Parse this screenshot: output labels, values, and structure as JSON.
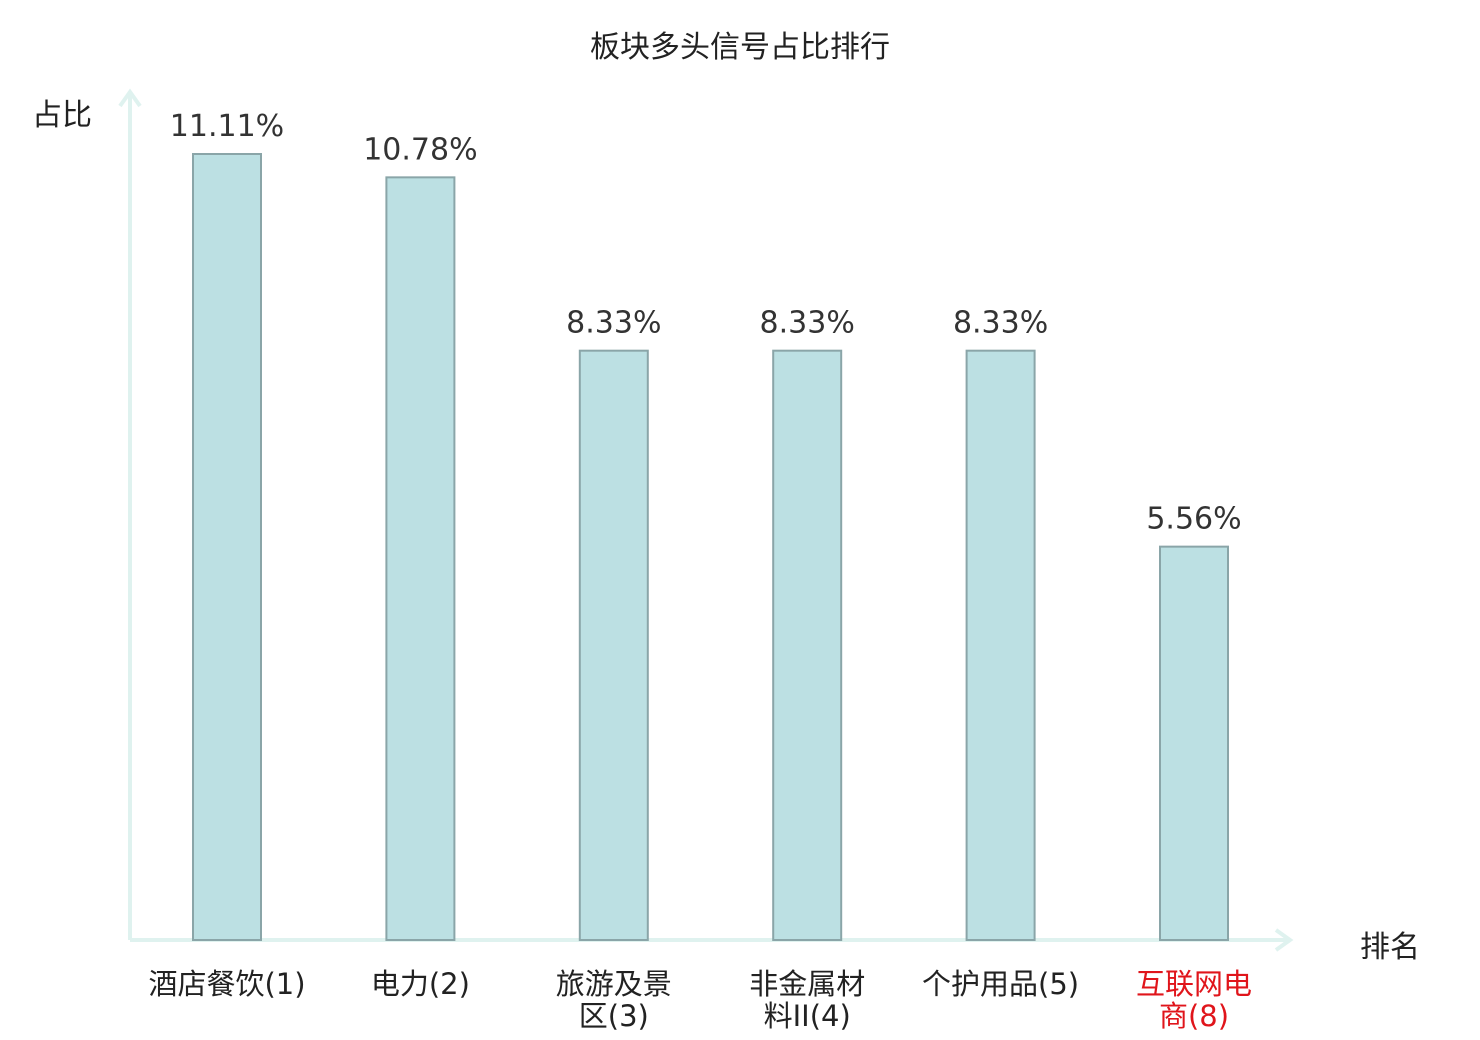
{
  "chart_data": {
    "type": "bar",
    "title": "板块多头信号占比排行",
    "ylabel": "占比",
    "xlabel": "排名",
    "categories": [
      "酒店餐饮(1)",
      "电力(2)",
      "旅游及景区(3)",
      "非金属材料II(4)",
      "个护用品(5)",
      "互联网电商(8)"
    ],
    "category_lines": [
      [
        "酒店餐饮(1)"
      ],
      [
        "电力(2)"
      ],
      [
        "旅游及景",
        "区(3)"
      ],
      [
        "非金属材",
        "料II(4)"
      ],
      [
        "个护用品(5)"
      ],
      [
        "互联网电",
        "商(8)"
      ]
    ],
    "values": [
      11.11,
      10.78,
      8.33,
      8.33,
      8.33,
      5.56
    ],
    "value_labels": [
      "11.11%",
      "10.78%",
      "8.33%",
      "8.33%",
      "8.33%",
      "5.56%"
    ],
    "highlight_index": 5,
    "ylim": [
      0,
      11.11
    ],
    "grid": false,
    "colors": {
      "bar_fill": "#bce0e3",
      "bar_stroke": "#8aa5a8",
      "axis": "#dff2ef",
      "label": "#333333",
      "highlight": "#e0151b"
    }
  }
}
